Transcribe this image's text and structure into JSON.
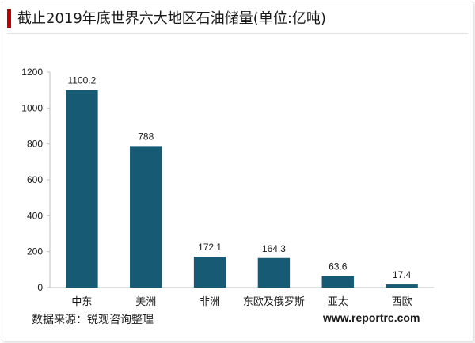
{
  "title": "截止2019年底世界六大地区石油储量(单位:亿吨)",
  "source": "数据来源：锐观咨询整理",
  "website": "www.reportrc.com",
  "colors": {
    "bar": "#175a73",
    "accent": "#c00000"
  },
  "chart_data": {
    "type": "bar",
    "title": "截止2019年底世界六大地区石油储量(单位:亿吨)",
    "xlabel": "",
    "ylabel": "",
    "categories": [
      "中东",
      "美洲",
      "非洲",
      "东欧及俄罗斯",
      "亚太",
      "西欧"
    ],
    "values": [
      1100.2,
      788,
      172.1,
      164.3,
      63.6,
      17.4
    ],
    "data_labels": [
      "1100.2",
      "788",
      "172.1",
      "164.3",
      "63.6",
      "17.4"
    ],
    "ylim": [
      0,
      1200
    ],
    "yticks": [
      0,
      200,
      400,
      600,
      800,
      1000,
      1200
    ],
    "grid": false,
    "legend": "none"
  }
}
